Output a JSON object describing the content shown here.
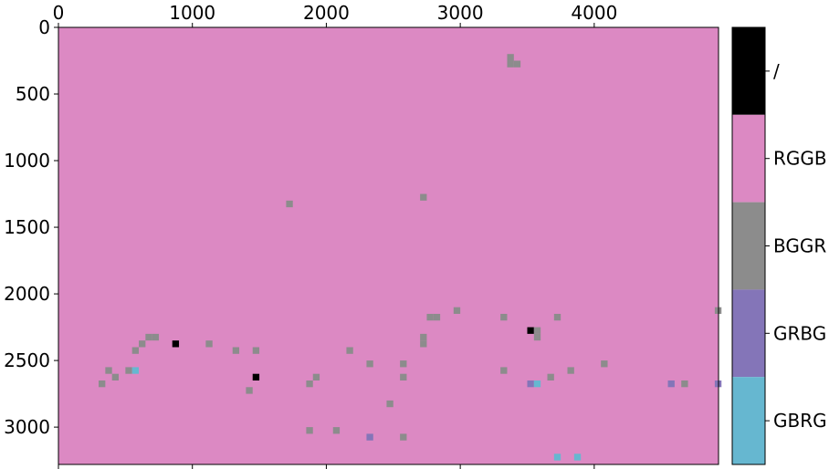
{
  "chart_data": {
    "type": "heatmap",
    "title": "",
    "xlabel": "",
    "ylabel": "",
    "xlim": [
      0,
      4928
    ],
    "ylim": [
      3280,
      0
    ],
    "cell_size": 50,
    "x_ticks": [
      0,
      1000,
      2000,
      3000,
      4000
    ],
    "y_ticks": [
      0,
      500,
      1000,
      1500,
      2000,
      2500,
      3000
    ],
    "background_category": "RGGB",
    "categories": [
      {
        "label": "/",
        "color": "#000000"
      },
      {
        "label": "RGGB",
        "color": "#dc89c3"
      },
      {
        "label": "BGGR",
        "color": "#8c8c8c"
      },
      {
        "label": "GRBG",
        "color": "#8475b8"
      },
      {
        "label": "GBRG",
        "color": "#66b7d0"
      }
    ],
    "cells": [
      {
        "x": 3350,
        "y": 200,
        "category": "BGGR"
      },
      {
        "x": 3350,
        "y": 250,
        "category": "BGGR"
      },
      {
        "x": 3400,
        "y": 250,
        "category": "BGGR"
      },
      {
        "x": 2700,
        "y": 1250,
        "category": "BGGR"
      },
      {
        "x": 1700,
        "y": 1300,
        "category": "BGGR"
      },
      {
        "x": 2950,
        "y": 2100,
        "category": "BGGR"
      },
      {
        "x": 2750,
        "y": 2150,
        "category": "BGGR"
      },
      {
        "x": 2800,
        "y": 2150,
        "category": "BGGR"
      },
      {
        "x": 3300,
        "y": 2150,
        "category": "BGGR"
      },
      {
        "x": 3700,
        "y": 2150,
        "category": "BGGR"
      },
      {
        "x": 4900,
        "y": 2100,
        "category": "BGGR"
      },
      {
        "x": 3500,
        "y": 2250,
        "category": "/"
      },
      {
        "x": 3550,
        "y": 2250,
        "category": "BGGR"
      },
      {
        "x": 3550,
        "y": 2300,
        "category": "BGGR"
      },
      {
        "x": 650,
        "y": 2300,
        "category": "BGGR"
      },
      {
        "x": 700,
        "y": 2300,
        "category": "BGGR"
      },
      {
        "x": 2700,
        "y": 2300,
        "category": "BGGR"
      },
      {
        "x": 2700,
        "y": 2350,
        "category": "BGGR"
      },
      {
        "x": 600,
        "y": 2350,
        "category": "BGGR"
      },
      {
        "x": 850,
        "y": 2350,
        "category": "/"
      },
      {
        "x": 1100,
        "y": 2350,
        "category": "BGGR"
      },
      {
        "x": 550,
        "y": 2400,
        "category": "BGGR"
      },
      {
        "x": 1300,
        "y": 2400,
        "category": "BGGR"
      },
      {
        "x": 1450,
        "y": 2400,
        "category": "BGGR"
      },
      {
        "x": 2150,
        "y": 2400,
        "category": "BGGR"
      },
      {
        "x": 2300,
        "y": 2500,
        "category": "BGGR"
      },
      {
        "x": 2550,
        "y": 2500,
        "category": "BGGR"
      },
      {
        "x": 4050,
        "y": 2500,
        "category": "BGGR"
      },
      {
        "x": 350,
        "y": 2550,
        "category": "BGGR"
      },
      {
        "x": 500,
        "y": 2550,
        "category": "BGGR"
      },
      {
        "x": 550,
        "y": 2550,
        "category": "GBRG"
      },
      {
        "x": 3300,
        "y": 2550,
        "category": "BGGR"
      },
      {
        "x": 3800,
        "y": 2550,
        "category": "BGGR"
      },
      {
        "x": 400,
        "y": 2600,
        "category": "BGGR"
      },
      {
        "x": 1450,
        "y": 2600,
        "category": "/"
      },
      {
        "x": 1900,
        "y": 2600,
        "category": "BGGR"
      },
      {
        "x": 2550,
        "y": 2600,
        "category": "BGGR"
      },
      {
        "x": 3650,
        "y": 2600,
        "category": "BGGR"
      },
      {
        "x": 300,
        "y": 2650,
        "category": "BGGR"
      },
      {
        "x": 1850,
        "y": 2650,
        "category": "BGGR"
      },
      {
        "x": 3500,
        "y": 2650,
        "category": "GRBG"
      },
      {
        "x": 3550,
        "y": 2650,
        "category": "GBRG"
      },
      {
        "x": 4550,
        "y": 2650,
        "category": "GRBG"
      },
      {
        "x": 4650,
        "y": 2650,
        "category": "BGGR"
      },
      {
        "x": 4900,
        "y": 2650,
        "category": "GRBG"
      },
      {
        "x": 1400,
        "y": 2700,
        "category": "BGGR"
      },
      {
        "x": 2450,
        "y": 2800,
        "category": "BGGR"
      },
      {
        "x": 1850,
        "y": 3000,
        "category": "BGGR"
      },
      {
        "x": 2050,
        "y": 3000,
        "category": "BGGR"
      },
      {
        "x": 2300,
        "y": 3050,
        "category": "GRBG"
      },
      {
        "x": 2550,
        "y": 3050,
        "category": "BGGR"
      },
      {
        "x": 3700,
        "y": 3200,
        "category": "GBRG"
      },
      {
        "x": 3850,
        "y": 3200,
        "category": "GBRG"
      }
    ]
  }
}
